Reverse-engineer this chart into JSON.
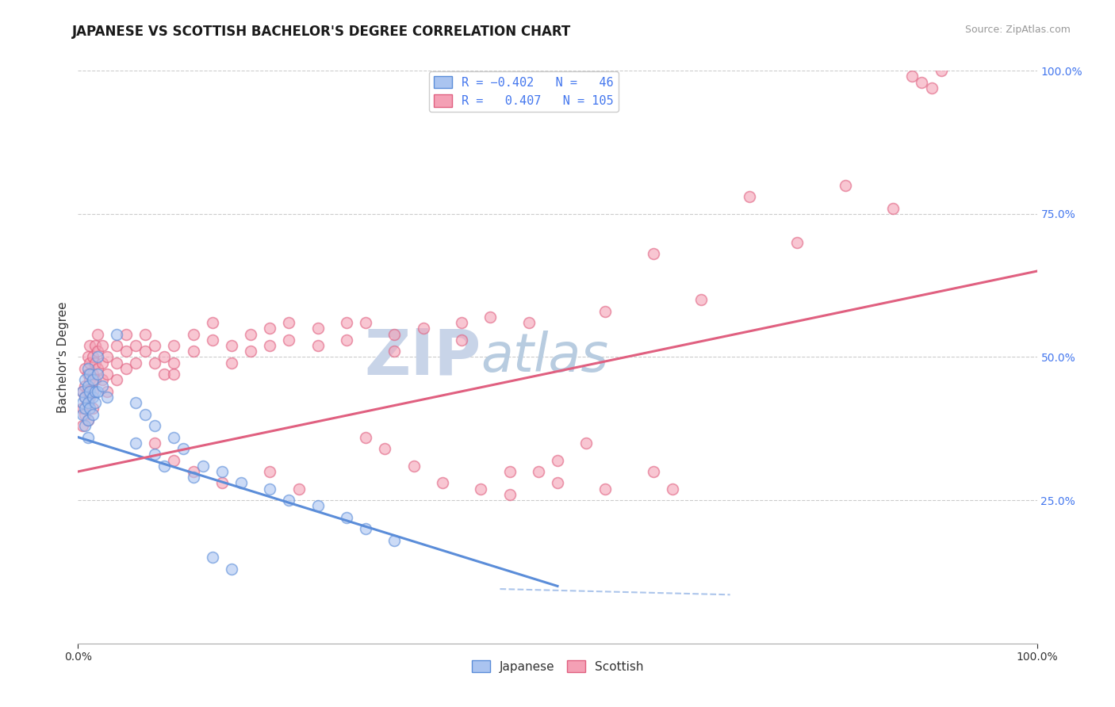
{
  "title": "JAPANESE VS SCOTTISH BACHELOR'S DEGREE CORRELATION CHART",
  "source_text": "Source: ZipAtlas.com",
  "ylabel": "Bachelor's Degree",
  "xlim": [
    0,
    1
  ],
  "ylim": [
    0,
    1
  ],
  "watermark_part1": "ZIP",
  "watermark_part2": "atlas",
  "japanese_scatter": [
    [
      0.005,
      0.44
    ],
    [
      0.005,
      0.42
    ],
    [
      0.005,
      0.4
    ],
    [
      0.007,
      0.46
    ],
    [
      0.007,
      0.43
    ],
    [
      0.007,
      0.41
    ],
    [
      0.007,
      0.38
    ],
    [
      0.01,
      0.48
    ],
    [
      0.01,
      0.45
    ],
    [
      0.01,
      0.42
    ],
    [
      0.01,
      0.39
    ],
    [
      0.01,
      0.36
    ],
    [
      0.012,
      0.47
    ],
    [
      0.012,
      0.44
    ],
    [
      0.012,
      0.41
    ],
    [
      0.015,
      0.46
    ],
    [
      0.015,
      0.43
    ],
    [
      0.015,
      0.4
    ],
    [
      0.018,
      0.44
    ],
    [
      0.018,
      0.42
    ],
    [
      0.02,
      0.5
    ],
    [
      0.02,
      0.47
    ],
    [
      0.02,
      0.44
    ],
    [
      0.025,
      0.45
    ],
    [
      0.03,
      0.43
    ],
    [
      0.04,
      0.54
    ],
    [
      0.06,
      0.42
    ],
    [
      0.07,
      0.4
    ],
    [
      0.08,
      0.38
    ],
    [
      0.1,
      0.36
    ],
    [
      0.11,
      0.34
    ],
    [
      0.13,
      0.31
    ],
    [
      0.15,
      0.3
    ],
    [
      0.17,
      0.28
    ],
    [
      0.2,
      0.27
    ],
    [
      0.22,
      0.25
    ],
    [
      0.25,
      0.24
    ],
    [
      0.28,
      0.22
    ],
    [
      0.3,
      0.2
    ],
    [
      0.33,
      0.18
    ],
    [
      0.06,
      0.35
    ],
    [
      0.08,
      0.33
    ],
    [
      0.09,
      0.31
    ],
    [
      0.12,
      0.29
    ],
    [
      0.14,
      0.15
    ],
    [
      0.16,
      0.13
    ]
  ],
  "scottish_scatter": [
    [
      0.005,
      0.44
    ],
    [
      0.005,
      0.41
    ],
    [
      0.005,
      0.38
    ],
    [
      0.007,
      0.48
    ],
    [
      0.007,
      0.45
    ],
    [
      0.007,
      0.43
    ],
    [
      0.007,
      0.4
    ],
    [
      0.01,
      0.5
    ],
    [
      0.01,
      0.47
    ],
    [
      0.01,
      0.44
    ],
    [
      0.01,
      0.42
    ],
    [
      0.01,
      0.39
    ],
    [
      0.012,
      0.52
    ],
    [
      0.012,
      0.49
    ],
    [
      0.012,
      0.46
    ],
    [
      0.012,
      0.43
    ],
    [
      0.015,
      0.5
    ],
    [
      0.015,
      0.47
    ],
    [
      0.015,
      0.44
    ],
    [
      0.015,
      0.41
    ],
    [
      0.018,
      0.52
    ],
    [
      0.018,
      0.49
    ],
    [
      0.018,
      0.46
    ],
    [
      0.02,
      0.54
    ],
    [
      0.02,
      0.51
    ],
    [
      0.02,
      0.48
    ],
    [
      0.025,
      0.52
    ],
    [
      0.025,
      0.49
    ],
    [
      0.025,
      0.46
    ],
    [
      0.03,
      0.5
    ],
    [
      0.03,
      0.47
    ],
    [
      0.03,
      0.44
    ],
    [
      0.04,
      0.52
    ],
    [
      0.04,
      0.49
    ],
    [
      0.04,
      0.46
    ],
    [
      0.05,
      0.54
    ],
    [
      0.05,
      0.51
    ],
    [
      0.05,
      0.48
    ],
    [
      0.06,
      0.52
    ],
    [
      0.06,
      0.49
    ],
    [
      0.07,
      0.54
    ],
    [
      0.07,
      0.51
    ],
    [
      0.08,
      0.52
    ],
    [
      0.08,
      0.49
    ],
    [
      0.09,
      0.5
    ],
    [
      0.09,
      0.47
    ],
    [
      0.1,
      0.52
    ],
    [
      0.1,
      0.49
    ],
    [
      0.1,
      0.47
    ],
    [
      0.12,
      0.54
    ],
    [
      0.12,
      0.51
    ],
    [
      0.14,
      0.56
    ],
    [
      0.14,
      0.53
    ],
    [
      0.16,
      0.52
    ],
    [
      0.16,
      0.49
    ],
    [
      0.18,
      0.54
    ],
    [
      0.18,
      0.51
    ],
    [
      0.2,
      0.55
    ],
    [
      0.2,
      0.52
    ],
    [
      0.22,
      0.56
    ],
    [
      0.22,
      0.53
    ],
    [
      0.25,
      0.55
    ],
    [
      0.25,
      0.52
    ],
    [
      0.28,
      0.56
    ],
    [
      0.28,
      0.53
    ],
    [
      0.3,
      0.56
    ],
    [
      0.33,
      0.54
    ],
    [
      0.33,
      0.51
    ],
    [
      0.36,
      0.55
    ],
    [
      0.4,
      0.56
    ],
    [
      0.4,
      0.53
    ],
    [
      0.43,
      0.57
    ],
    [
      0.47,
      0.56
    ],
    [
      0.3,
      0.36
    ],
    [
      0.32,
      0.34
    ],
    [
      0.35,
      0.31
    ],
    [
      0.38,
      0.28
    ],
    [
      0.42,
      0.27
    ],
    [
      0.45,
      0.26
    ],
    [
      0.48,
      0.3
    ],
    [
      0.5,
      0.32
    ],
    [
      0.53,
      0.35
    ],
    [
      0.08,
      0.35
    ],
    [
      0.1,
      0.32
    ],
    [
      0.12,
      0.3
    ],
    [
      0.15,
      0.28
    ],
    [
      0.2,
      0.3
    ],
    [
      0.23,
      0.27
    ],
    [
      0.55,
      0.58
    ],
    [
      0.6,
      0.68
    ],
    [
      0.65,
      0.6
    ],
    [
      0.7,
      0.78
    ],
    [
      0.75,
      0.7
    ],
    [
      0.8,
      0.8
    ],
    [
      0.85,
      0.76
    ],
    [
      0.87,
      0.99
    ],
    [
      0.88,
      0.98
    ],
    [
      0.89,
      0.97
    ],
    [
      0.9,
      1.0
    ],
    [
      0.45,
      0.3
    ],
    [
      0.5,
      0.28
    ],
    [
      0.55,
      0.27
    ],
    [
      0.6,
      0.3
    ],
    [
      0.62,
      0.27
    ]
  ],
  "japanese_line": {
    "x": [
      0.0,
      0.5
    ],
    "y": [
      0.36,
      0.1
    ]
  },
  "scottish_line": {
    "x": [
      0.0,
      1.0
    ],
    "y": [
      0.3,
      0.65
    ]
  },
  "dashed_line": {
    "x": [
      0.44,
      0.68
    ],
    "y": [
      0.095,
      0.085
    ]
  },
  "scatter_alpha": 0.6,
  "scatter_size": 100,
  "japanese_color": "#5b8dd9",
  "japanese_face": "#aac4f0",
  "scottish_color": "#e06080",
  "scottish_face": "#f4a0b5",
  "bg_color": "#ffffff",
  "grid_color": "#cccccc",
  "watermark_color1": "#c8d4e8",
  "watermark_color2": "#b8cce0",
  "title_fontsize": 12,
  "axis_label_fontsize": 11,
  "tick_fontsize": 10,
  "right_tick_color": "#4477ee",
  "source_color": "#999999"
}
